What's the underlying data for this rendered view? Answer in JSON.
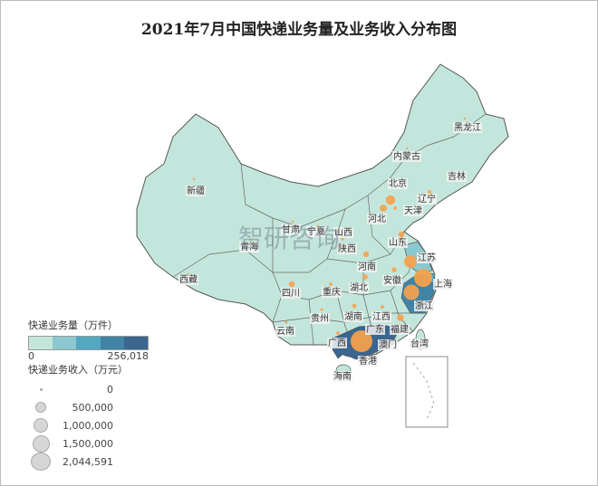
{
  "title": "2021年7月中国快递业务量及业务收入分布图",
  "watermark": "智研咨询",
  "colors": {
    "land": "#c3e6dc",
    "border": "#555555",
    "bubble": "#f7a24b",
    "ramp": [
      "#c3e6dc",
      "#8cc8d0",
      "#52a8c0",
      "#3f84a6",
      "#3a6690"
    ]
  },
  "legend": {
    "volume_title": "快递业务量（万件）",
    "volume_min": "0",
    "volume_max": "256,018",
    "revenue_title": "快递业务收入（万元）",
    "revenue_sizes": [
      "0",
      "500,000",
      "1,000,000",
      "1,500,000",
      "2,044,591"
    ]
  },
  "provinces": [
    {
      "name": "黑龙江",
      "volume_class": 0,
      "revenue": 20000
    },
    {
      "name": "内蒙古",
      "volume_class": 0,
      "revenue": 8000
    },
    {
      "name": "吉林",
      "volume_class": 0,
      "revenue": 12000
    },
    {
      "name": "新疆",
      "volume_class": 0,
      "revenue": 8000
    },
    {
      "name": "北京",
      "volume_class": 0,
      "revenue": 220000
    },
    {
      "name": "辽宁",
      "volume_class": 0,
      "revenue": 60000
    },
    {
      "name": "天津",
      "volume_class": 0,
      "revenue": 50000
    },
    {
      "name": "河北",
      "volume_class": 1,
      "revenue": 380000
    },
    {
      "name": "甘肃",
      "volume_class": 0,
      "revenue": 5000
    },
    {
      "name": "宁夏",
      "volume_class": 0,
      "revenue": 3000
    },
    {
      "name": "山西",
      "volume_class": 0,
      "revenue": 40000
    },
    {
      "name": "青海",
      "volume_class": 0,
      "revenue": 2000
    },
    {
      "name": "陕西",
      "volume_class": 0,
      "revenue": 60000
    },
    {
      "name": "山东",
      "volume_class": 1,
      "revenue": 150000
    },
    {
      "name": "河南",
      "volume_class": 0,
      "revenue": 140000
    },
    {
      "name": "江苏",
      "volume_class": 1,
      "revenue": 700000
    },
    {
      "name": "西藏",
      "volume_class": 0,
      "revenue": 1000
    },
    {
      "name": "安徽",
      "volume_class": 0,
      "revenue": 100000
    },
    {
      "name": "上海",
      "volume_class": 2,
      "revenue": 1420000
    },
    {
      "name": "四川",
      "volume_class": 0,
      "revenue": 150000
    },
    {
      "name": "湖北",
      "volume_class": 0,
      "revenue": 110000
    },
    {
      "name": "重庆",
      "volume_class": 0,
      "revenue": 50000
    },
    {
      "name": "浙江",
      "volume_class": 3,
      "revenue": 1030000
    },
    {
      "name": "贵州",
      "volume_class": 0,
      "revenue": 25000
    },
    {
      "name": "湖南",
      "volume_class": 0,
      "revenue": 80000
    },
    {
      "name": "江西",
      "volume_class": 0,
      "revenue": 50000
    },
    {
      "name": "云南",
      "volume_class": 0,
      "revenue": 30000
    },
    {
      "name": "广东",
      "volume_class": 4,
      "revenue": 2044591
    },
    {
      "name": "福建",
      "volume_class": 0,
      "revenue": 200000
    },
    {
      "name": "广西",
      "volume_class": 0,
      "revenue": 50000
    },
    {
      "name": "澳门",
      "volume_class": 0,
      "revenue": 0
    },
    {
      "name": "台湾",
      "volume_class": 0,
      "revenue": 0
    },
    {
      "name": "香港",
      "volume_class": 0,
      "revenue": 0
    },
    {
      "name": "海南",
      "volume_class": 0,
      "revenue": 8000
    }
  ]
}
